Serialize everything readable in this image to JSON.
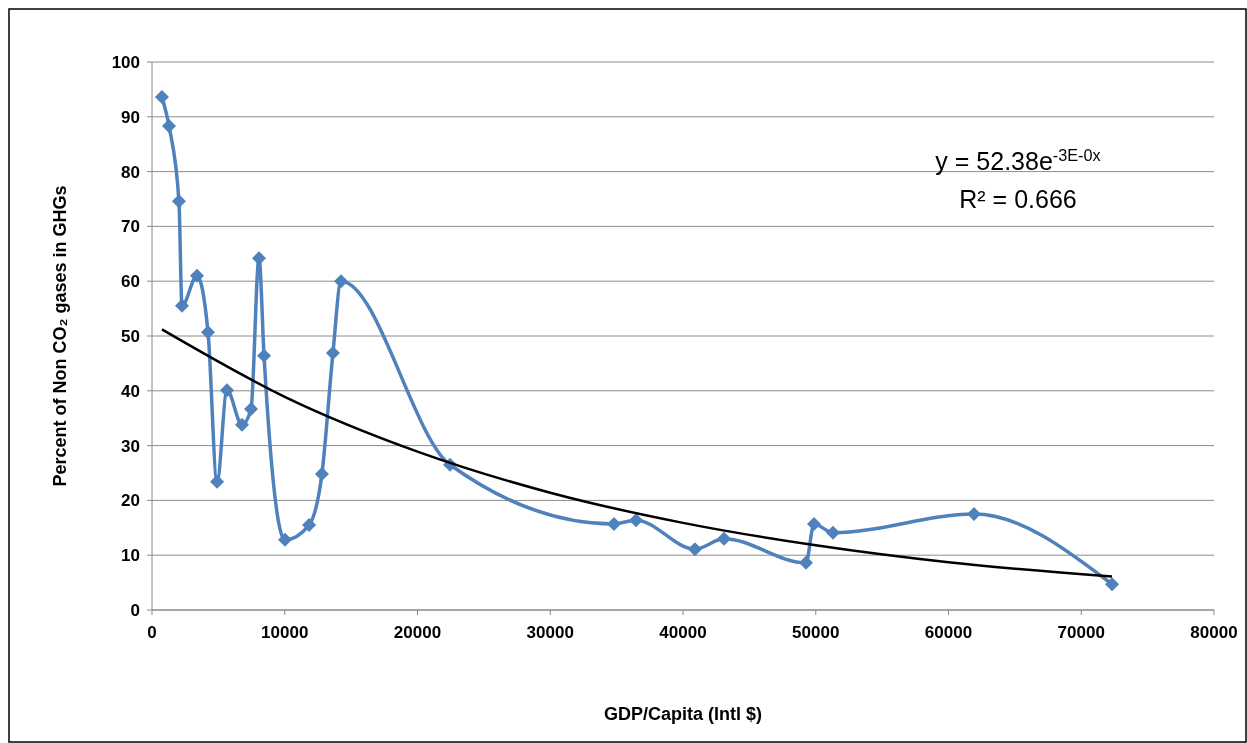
{
  "chart_data": {
    "type": "line",
    "xlabel": "GDP/Capita (Intl $)",
    "ylabel": "Percent of Non CO₂ gases in GHGs",
    "xlim": [
      0,
      80000
    ],
    "xticks": [
      0,
      10000,
      20000,
      30000,
      40000,
      50000,
      60000,
      70000,
      80000
    ],
    "ylim": [
      0,
      100
    ],
    "yticks": [
      0,
      10,
      20,
      30,
      40,
      50,
      60,
      70,
      80,
      90,
      100
    ],
    "grid": "y",
    "marker": "diamond",
    "annotations": [
      "y = 52.38e$^{-3E-0x}$",
      "R² = 0.666"
    ],
    "series": [
      {
        "color": "#4f81bd",
        "x": [
          750,
          1280,
          2030,
          2260,
          3390,
          4220,
          4900,
          5650,
          6780,
          7460,
          8060,
          8440,
          10020,
          11830,
          12800,
          13630,
          14240,
          22450,
          34800,
          36460,
          40900,
          43090,
          49260,
          49870,
          51300,
          61920,
          72320
        ],
        "values": [
          93.6,
          88.3,
          74.6,
          55.5,
          61,
          50.7,
          23.4,
          40.1,
          33.8,
          36.7,
          64.2,
          46.4,
          12.8,
          15.5,
          24.8,
          46.9,
          60,
          26.5,
          15.7,
          16.4,
          11.1,
          13,
          8.6,
          15.7,
          14.1,
          17.5,
          4.7
        ]
      },
      {
        "type": "line",
        "color": "#000000",
        "marker": "none",
        "x": [
          750,
          10000,
          20000,
          30000,
          40000,
          50000,
          60000,
          72320
        ],
        "values": [
          51.2,
          38.9,
          28.9,
          21.4,
          15.9,
          11.8,
          8.7,
          6.1
        ]
      }
    ]
  }
}
